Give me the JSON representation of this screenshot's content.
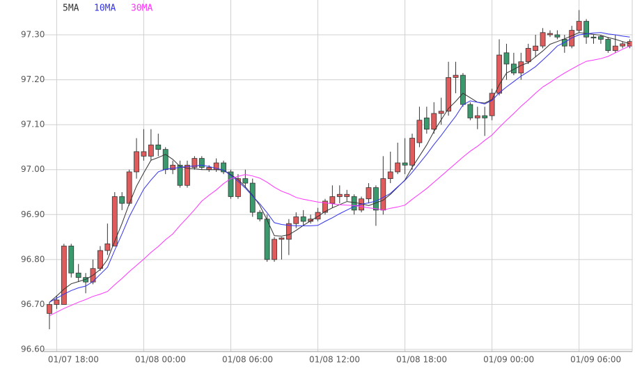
{
  "chart_data": {
    "type": "candlestick",
    "categories": [
      null,
      "01/07 18:00",
      null,
      null,
      null,
      null,
      null,
      null,
      null,
      null,
      null,
      null,
      null,
      "01/08 00:00",
      null,
      null,
      null,
      null,
      null,
      null,
      null,
      null,
      null,
      null,
      null,
      "01/08 06:00",
      null,
      null,
      null,
      null,
      null,
      null,
      null,
      null,
      null,
      null,
      null,
      "01/08 12:00",
      null,
      null,
      null,
      null,
      null,
      null,
      null,
      null,
      null,
      null,
      null,
      "01/08 18:00",
      null,
      null,
      null,
      null,
      null,
      null,
      null,
      null,
      null,
      null,
      null,
      "01/09 00:00",
      null,
      null,
      null,
      null,
      null,
      null,
      null,
      null,
      null,
      null,
      null,
      "01/09 06:00",
      null,
      null,
      null,
      null,
      null,
      null,
      null
    ],
    "open": [
      96.68,
      96.7,
      96.7,
      96.83,
      96.77,
      96.76,
      96.75,
      96.78,
      96.82,
      96.83,
      96.94,
      96.925,
      96.995,
      97.03,
      97.03,
      97.055,
      97.045,
      97.0,
      97.01,
      96.965,
      97.005,
      97.025,
      97.0,
      97.0,
      97.015,
      96.995,
      96.94,
      96.98,
      96.97,
      96.905,
      96.89,
      96.8,
      96.845,
      96.845,
      96.88,
      96.895,
      96.885,
      96.89,
      96.905,
      96.925,
      96.94,
      96.94,
      96.94,
      96.91,
      96.935,
      96.96,
      96.91,
      96.98,
      96.995,
      97.015,
      97.01,
      97.06,
      97.115,
      97.09,
      97.125,
      97.13,
      97.205,
      97.21,
      97.145,
      97.115,
      97.12,
      97.12,
      97.17,
      97.26,
      97.235,
      97.215,
      97.24,
      97.265,
      97.275,
      97.3,
      97.3,
      97.29,
      97.275,
      97.31,
      97.33,
      97.295,
      97.296,
      97.29,
      97.265,
      97.275,
      97.275
    ],
    "high": [
      96.705,
      96.72,
      96.835,
      96.835,
      96.79,
      96.77,
      96.8,
      96.83,
      96.88,
      96.95,
      96.95,
      97.0,
      97.07,
      97.09,
      97.09,
      97.08,
      97.05,
      97.02,
      97.02,
      97.02,
      97.03,
      97.03,
      97.01,
      97.025,
      97.02,
      97.0,
      96.99,
      97.0,
      96.98,
      96.91,
      96.9,
      96.85,
      96.85,
      96.89,
      96.905,
      96.91,
      96.9,
      96.915,
      96.935,
      96.965,
      96.965,
      96.955,
      96.945,
      96.94,
      96.97,
      96.965,
      97.03,
      97.04,
      97.06,
      97.07,
      97.08,
      97.14,
      97.14,
      97.15,
      97.16,
      97.24,
      97.24,
      97.215,
      97.15,
      97.14,
      97.14,
      97.18,
      97.29,
      97.28,
      97.26,
      97.26,
      97.28,
      97.3,
      97.315,
      97.31,
      97.31,
      97.3,
      97.32,
      97.355,
      97.335,
      97.3,
      97.3,
      97.295,
      97.3,
      97.285,
      97.29
    ],
    "low": [
      96.645,
      96.69,
      96.7,
      96.76,
      96.75,
      96.725,
      96.745,
      96.775,
      96.81,
      96.83,
      96.91,
      96.92,
      96.98,
      97.02,
      97.02,
      97.03,
      96.99,
      96.99,
      96.96,
      96.96,
      97.0,
      97.0,
      96.995,
      96.995,
      96.99,
      96.935,
      96.935,
      96.96,
      96.895,
      96.885,
      96.795,
      96.795,
      96.8,
      96.81,
      96.87,
      96.875,
      96.88,
      96.885,
      96.9,
      96.915,
      96.925,
      96.93,
      96.9,
      96.905,
      96.925,
      96.875,
      96.9,
      96.97,
      96.99,
      96.99,
      97.0,
      97.05,
      97.08,
      97.08,
      97.1,
      97.12,
      97.17,
      97.14,
      97.11,
      97.09,
      97.075,
      97.11,
      97.165,
      97.2,
      97.21,
      97.2,
      97.235,
      97.25,
      97.27,
      97.295,
      97.29,
      97.26,
      97.27,
      97.305,
      97.28,
      97.28,
      97.28,
      97.26,
      97.26,
      97.27,
      97.27
    ],
    "close": [
      96.7,
      96.71,
      96.83,
      96.77,
      96.76,
      96.75,
      96.78,
      96.82,
      96.835,
      96.94,
      96.925,
      96.995,
      97.04,
      97.04,
      97.055,
      97.045,
      97.0,
      97.01,
      96.965,
      97.01,
      97.025,
      97.005,
      97.005,
      97.015,
      96.995,
      96.94,
      96.98,
      96.97,
      96.905,
      96.89,
      96.8,
      96.845,
      96.848,
      96.88,
      96.895,
      96.885,
      96.89,
      96.905,
      96.93,
      96.94,
      96.945,
      96.945,
      96.91,
      96.935,
      96.96,
      96.91,
      96.98,
      96.995,
      97.015,
      97.01,
      97.07,
      97.11,
      97.09,
      97.125,
      97.13,
      97.205,
      97.21,
      97.145,
      97.115,
      97.12,
      97.115,
      97.17,
      97.255,
      97.235,
      97.215,
      97.24,
      97.27,
      97.275,
      97.305,
      97.303,
      97.295,
      97.275,
      97.31,
      97.33,
      97.295,
      97.293,
      97.29,
      97.265,
      97.275,
      97.28,
      97.285
    ],
    "up_color": "#e05c5c",
    "down_color": "#3a9a6e",
    "series": [
      {
        "name": "5MA",
        "color": "#333333",
        "values": [
          96.705,
          96.719,
          96.734,
          96.746,
          96.751,
          96.756,
          96.765,
          96.778,
          96.8,
          96.841,
          96.88,
          96.924,
          96.963,
          96.993,
          97.021,
          97.027,
          97.034,
          97.023,
          97.007,
          97.003,
          97.002,
          97.0,
          97.0,
          97.0,
          96.999,
          96.989,
          96.978,
          96.962,
          96.943,
          96.92,
          96.888,
          96.853,
          96.852,
          96.855,
          96.865,
          96.876,
          96.886,
          96.896,
          96.907,
          96.915,
          96.922,
          96.929,
          96.927,
          96.924,
          96.92,
          96.926,
          96.932,
          96.945,
          96.961,
          96.977,
          97.005,
          97.03,
          97.055,
          97.085,
          97.111,
          97.136,
          97.152,
          97.17,
          97.16,
          97.15,
          97.148,
          97.156,
          97.189,
          97.215,
          97.223,
          97.232,
          97.238,
          97.251,
          97.264,
          97.279,
          97.285,
          97.291,
          97.298,
          97.305,
          97.303,
          97.301,
          97.299,
          97.294,
          97.29,
          97.285,
          97.28
        ]
      },
      {
        "name": "10MA",
        "color": "#3333ee",
        "values": [
          96.705,
          96.714,
          96.723,
          96.731,
          96.737,
          96.741,
          96.751,
          96.767,
          96.783,
          96.821,
          96.857,
          96.895,
          96.926,
          96.957,
          96.977,
          96.995,
          97.001,
          97.003,
          97.005,
          97.007,
          97.008,
          97.01,
          97.007,
          97.003,
          96.999,
          96.987,
          96.974,
          96.959,
          96.941,
          96.924,
          96.904,
          96.882,
          96.878,
          96.876,
          96.875,
          96.875,
          96.875,
          96.876,
          96.885,
          96.893,
          96.902,
          96.91,
          96.918,
          96.923,
          96.926,
          96.93,
          96.938,
          96.947,
          96.962,
          96.976,
          96.994,
          97.014,
          97.034,
          97.056,
          97.076,
          97.098,
          97.119,
          97.144,
          97.153,
          97.15,
          97.146,
          97.154,
          97.171,
          97.184,
          97.196,
          97.208,
          97.218,
          97.229,
          97.244,
          97.259,
          97.275,
          97.283,
          97.293,
          97.3,
          97.302,
          97.304,
          97.305,
          97.302,
          97.3,
          97.297,
          97.295
        ]
      },
      {
        "name": "30MA",
        "color": "#ff33ff",
        "values": [
          96.675,
          96.683,
          96.691,
          96.698,
          96.705,
          96.711,
          96.718,
          96.723,
          96.729,
          96.744,
          96.758,
          96.773,
          96.787,
          96.801,
          96.816,
          96.829,
          96.844,
          96.857,
          96.876,
          96.893,
          96.911,
          96.93,
          96.943,
          96.955,
          96.969,
          96.98,
          96.985,
          96.989,
          96.986,
          96.981,
          96.972,
          96.961,
          96.952,
          96.946,
          96.938,
          96.934,
          96.931,
          96.928,
          96.926,
          96.924,
          96.922,
          96.921,
          96.92,
          96.918,
          96.915,
          96.913,
          96.91,
          96.914,
          96.917,
          96.921,
          96.934,
          96.946,
          96.958,
          96.972,
          96.986,
          97.0,
          97.014,
          97.028,
          97.041,
          97.052,
          97.065,
          97.077,
          97.094,
          97.11,
          97.125,
          97.141,
          97.155,
          97.17,
          97.184,
          97.194,
          97.205,
          97.215,
          97.224,
          97.233,
          97.241,
          97.244,
          97.247,
          97.252,
          97.26,
          97.268,
          97.275
        ]
      }
    ],
    "ylim": [
      96.6,
      97.37
    ],
    "yticks": [
      {
        "value": 96.6,
        "label": "96.60"
      },
      {
        "value": 96.7,
        "label": "96.70"
      },
      {
        "value": 96.8,
        "label": "96.80"
      },
      {
        "value": 96.9,
        "label": "96.90"
      },
      {
        "value": 97.0,
        "label": "97.00"
      },
      {
        "value": 97.1,
        "label": "97.10"
      },
      {
        "value": 97.2,
        "label": "97.20"
      },
      {
        "value": 97.3,
        "label": "97.30"
      }
    ],
    "grid": true
  }
}
